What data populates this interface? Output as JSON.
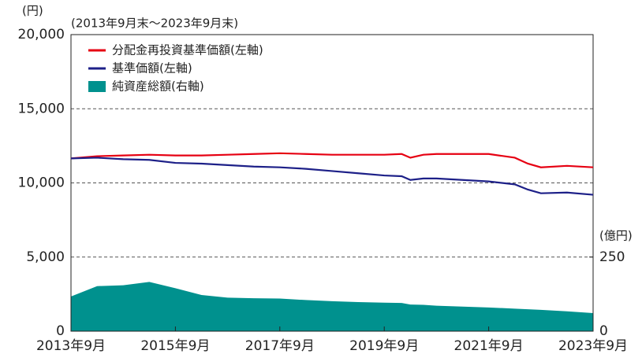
{
  "chart_data": {
    "type": "line",
    "unit_left": "(円)",
    "subtitle": "(2013年9月末～2023年9月末)",
    "unit_right": "(億円)",
    "x": [
      "2013-09",
      "2014-03",
      "2014-09",
      "2015-03",
      "2015-09",
      "2016-03",
      "2016-09",
      "2017-03",
      "2017-09",
      "2018-03",
      "2018-09",
      "2019-03",
      "2019-09",
      "2020-01",
      "2020-03",
      "2020-06",
      "2020-09",
      "2021-03",
      "2021-09",
      "2022-03",
      "2022-06",
      "2022-09",
      "2023-03",
      "2023-09"
    ],
    "xlim": [
      "2013-09",
      "2023-09"
    ],
    "xticks": [
      {
        "value": "2013-09",
        "label": "2013年9月"
      },
      {
        "value": "2015-09",
        "label": "2015年9月"
      },
      {
        "value": "2017-09",
        "label": "2017年9月"
      },
      {
        "value": "2019-09",
        "label": "2019年9月"
      },
      {
        "value": "2021-09",
        "label": "2021年9月"
      },
      {
        "value": "2023-09",
        "label": "2023年9月"
      }
    ],
    "ylim": [
      0,
      20000
    ],
    "yticks": [
      0,
      {
        "value": 5000,
        "label": "5,000"
      },
      {
        "value": 10000,
        "label": "10,000"
      },
      {
        "value": 15000,
        "label": "15,000"
      },
      {
        "value": 20000,
        "label": "20,000"
      }
    ],
    "y2lim": [
      0,
      1000
    ],
    "y2ticks": [
      0,
      250
    ],
    "grid": true,
    "series": [
      {
        "name": "分配金再投資基準価額(左軸)",
        "type": "line",
        "color": "#e60012",
        "values": [
          11650,
          11800,
          11850,
          11900,
          11850,
          11850,
          11900,
          11950,
          12000,
          11950,
          11900,
          11900,
          11900,
          11950,
          11700,
          11900,
          11950,
          11950,
          11950,
          11700,
          11300,
          11050,
          11150,
          11050
        ]
      },
      {
        "name": "基準価額(左軸)",
        "type": "line",
        "color": "#1d2088",
        "values": [
          11650,
          11700,
          11600,
          11550,
          11350,
          11300,
          11200,
          11100,
          11050,
          10950,
          10800,
          10650,
          10500,
          10450,
          10200,
          10300,
          10300,
          10200,
          10100,
          9900,
          9550,
          9300,
          9350,
          9200
        ]
      },
      {
        "name": "純資産総額(右軸)",
        "type": "area",
        "axis": "y2",
        "color": "#00918e",
        "values": [
          117,
          152,
          155,
          166,
          145,
          122,
          113,
          111,
          110,
          105,
          101,
          98,
          96,
          95,
          90,
          89,
          86,
          83,
          80,
          76,
          74,
          72,
          67,
          61
        ]
      }
    ]
  }
}
